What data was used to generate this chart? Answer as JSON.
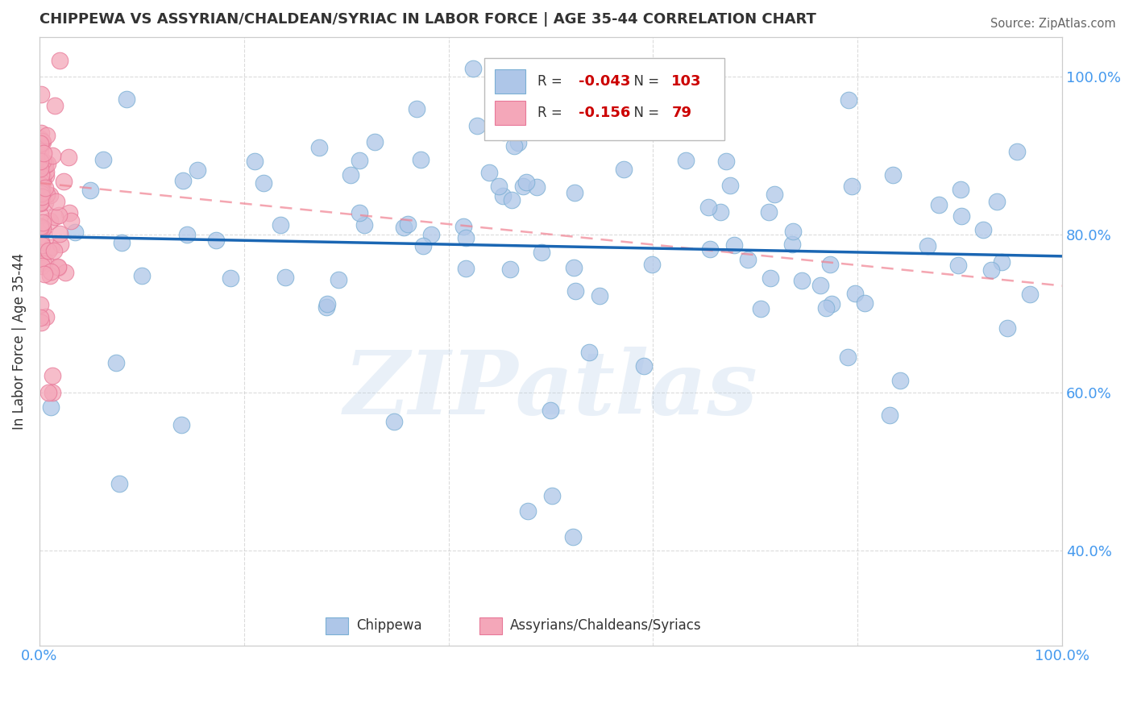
{
  "title": "CHIPPEWA VS ASSYRIAN/CHALDEAN/SYRIAC IN LABOR FORCE | AGE 35-44 CORRELATION CHART",
  "source": "Source: ZipAtlas.com",
  "ylabel": "In Labor Force | Age 35-44",
  "xlim": [
    0.0,
    1.0
  ],
  "ylim": [
    0.28,
    1.05
  ],
  "blue_R": -0.043,
  "blue_N": 103,
  "pink_R": -0.156,
  "pink_N": 79,
  "blue_color": "#aec6e8",
  "blue_edge_color": "#7aafd4",
  "pink_color": "#f4a7b9",
  "pink_edge_color": "#e87898",
  "blue_line_color": "#1a66b3",
  "pink_line_color": "#f08090",
  "watermark": "ZIPatlas",
  "legend_label_blue": "Chippewa",
  "legend_label_pink": "Assyrians/Chaldeans/Syriacs",
  "tick_color": "#4499ee",
  "label_color": "#333333",
  "grid_color": "#cccccc"
}
